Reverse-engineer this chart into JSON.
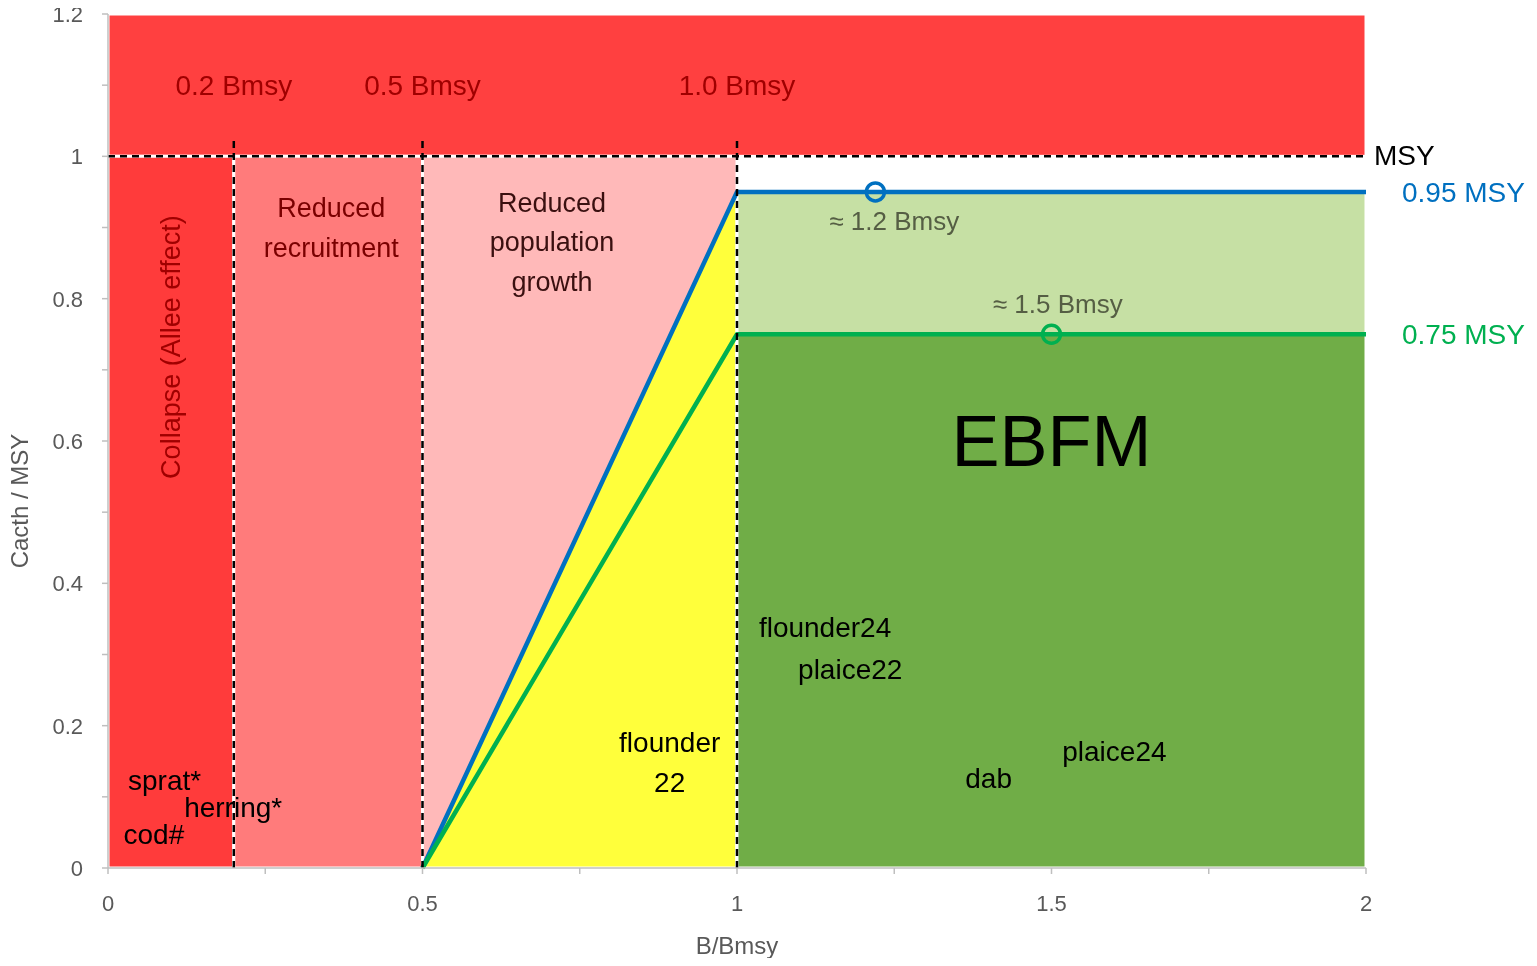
{
  "chart_data": {
    "type": "line",
    "xlabel": "B/Bmsy",
    "ylabel": "Cacth / MSY",
    "xlim": [
      0,
      2
    ],
    "ylim": [
      0,
      1.2
    ],
    "xticks": [
      0,
      {
        "value": 0.25,
        "label": null
      },
      0.5,
      {
        "value": 0.75,
        "label": null
      },
      1,
      {
        "value": 1.25,
        "label": null
      },
      1.5,
      {
        "value": 1.75,
        "label": null
      },
      2
    ],
    "yticks": [
      0,
      {
        "value": 0.1,
        "label": null
      },
      0.2,
      {
        "value": 0.3,
        "label": null
      },
      0.4,
      {
        "value": 0.5,
        "label": null
      },
      0.6,
      {
        "value": 0.7,
        "label": null
      },
      0.8,
      {
        "value": 0.9,
        "label": null
      },
      1,
      {
        "value": 1.1,
        "label": null
      },
      1.2
    ],
    "series": [
      {
        "type": "area",
        "color": "#ff3b3b",
        "x": [
          0,
          0.2
        ],
        "values": [
          1,
          1
        ]
      },
      {
        "type": "area",
        "color": "#ff7b7b",
        "x": [
          0.2,
          0.5
        ],
        "values": [
          1,
          1
        ]
      },
      {
        "type": "area",
        "color": "#ffb9b9",
        "x": [
          0.5,
          1
        ],
        "values": [
          1,
          1
        ]
      },
      {
        "type": "area",
        "color": "#ffff3b",
        "x": [
          0.5,
          1
        ],
        "values": [
          0,
          0.95
        ]
      },
      {
        "type": "area",
        "color": "#c6e0a4",
        "x": [
          1,
          2
        ],
        "values": [
          0.95,
          0.95
        ]
      },
      {
        "type": "area",
        "color": "#70ad47",
        "x": [
          1,
          2
        ],
        "values": [
          0.75,
          0.75
        ]
      },
      {
        "type": "line",
        "name": "0.95 MSY",
        "color": "#0070c0",
        "x": [
          0.5,
          1,
          2
        ],
        "values": [
          0,
          0.95,
          0.95
        ]
      },
      {
        "type": "line",
        "name": "0.75 MSY",
        "color": "#00b050",
        "x": [
          0.5,
          1,
          2
        ],
        "values": [
          0,
          0.75,
          0.75
        ]
      },
      {
        "type": "scatter",
        "marker": "circle",
        "color": "#0070c0",
        "x": [
          1.22
        ],
        "values": [
          0.95
        ]
      },
      {
        "type": "scatter",
        "marker": "circle",
        "color": "#00b050",
        "x": [
          1.5
        ],
        "values": [
          0.75
        ]
      }
    ],
    "bands": [
      {
        "axis": "y",
        "from": 1,
        "to": 1.2,
        "color": "#ff4040"
      }
    ],
    "ref_lines": [
      {
        "axis": "y",
        "value": 1,
        "label": "MSY",
        "line_style": "dashed",
        "color": "#000000"
      },
      {
        "axis": "x",
        "value": 0.2,
        "label": "0.2 Bmsy",
        "line_style": "dashed",
        "color": "#000000"
      },
      {
        "axis": "x",
        "value": 0.5,
        "label": "0.5 Bmsy",
        "line_style": "dashed",
        "color": "#000000"
      },
      {
        "axis": "x",
        "value": 1,
        "label": "1.0 Bmsy",
        "line_style": "dashed",
        "color": "#000000"
      }
    ],
    "annotations": [
      "Collapse (Allee effect)",
      "Reduced\nrecruitment",
      "Reduced\npopulation\ngrowth",
      "≈ 1.2 Bmsy",
      "≈ 1.5 Bmsy",
      "EBFM",
      "flounder24",
      "plaice22",
      "plaice24",
      "dab",
      "flounder\n22",
      "sprat*",
      "herring*",
      "cod#"
    ]
  }
}
